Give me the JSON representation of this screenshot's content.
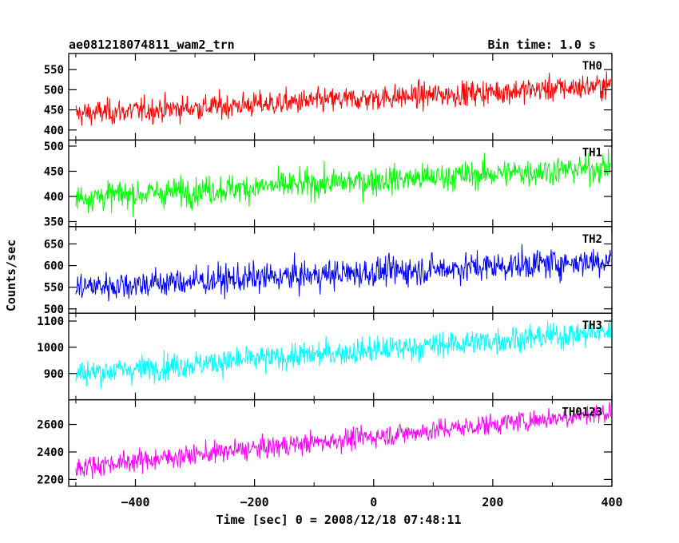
{
  "header": {
    "title": "ae081218074811_wam2_trn",
    "bin_time": "Bin time: 1.0 s"
  },
  "axes": {
    "ylabel": "Counts/sec",
    "xlabel": "Time [sec] 0 = 2008/12/18 07:48:11"
  },
  "chart_data": {
    "type": "line",
    "x_range": [
      -512,
      400
    ],
    "x_ticks": [
      -400,
      -200,
      0,
      200,
      400
    ],
    "x_tick_labels": [
      "−400",
      "−200",
      "0",
      "200",
      "400"
    ],
    "bin_time_s": 1.0,
    "panels": [
      {
        "name": "TH0",
        "color": "#ff0000",
        "ylim": [
          375,
          590
        ],
        "yticks": [
          400,
          450,
          500,
          550
        ],
        "trend": [
          440,
          510
        ],
        "noise": 22
      },
      {
        "name": "TH1",
        "color": "#00ff00",
        "ylim": [
          340,
          512
        ],
        "yticks": [
          350,
          400,
          450,
          500
        ],
        "trend": [
          398,
          458
        ],
        "noise": 20
      },
      {
        "name": "TH2",
        "color": "#0000ff",
        "ylim": [
          490,
          690
        ],
        "yticks": [
          500,
          550,
          600,
          650
        ],
        "trend": [
          550,
          612
        ],
        "noise": 24
      },
      {
        "name": "TH3",
        "color": "#00ffff",
        "ylim": [
          800,
          1130
        ],
        "yticks": [
          900,
          1000,
          1100
        ],
        "trend": [
          900,
          1060
        ],
        "noise": 35
      },
      {
        "name": "TH0123",
        "color": "#ff00ff",
        "ylim": [
          2150,
          2780
        ],
        "yticks": [
          2200,
          2400,
          2600
        ],
        "trend": [
          2290,
          2690
        ],
        "noise": 55
      }
    ]
  }
}
